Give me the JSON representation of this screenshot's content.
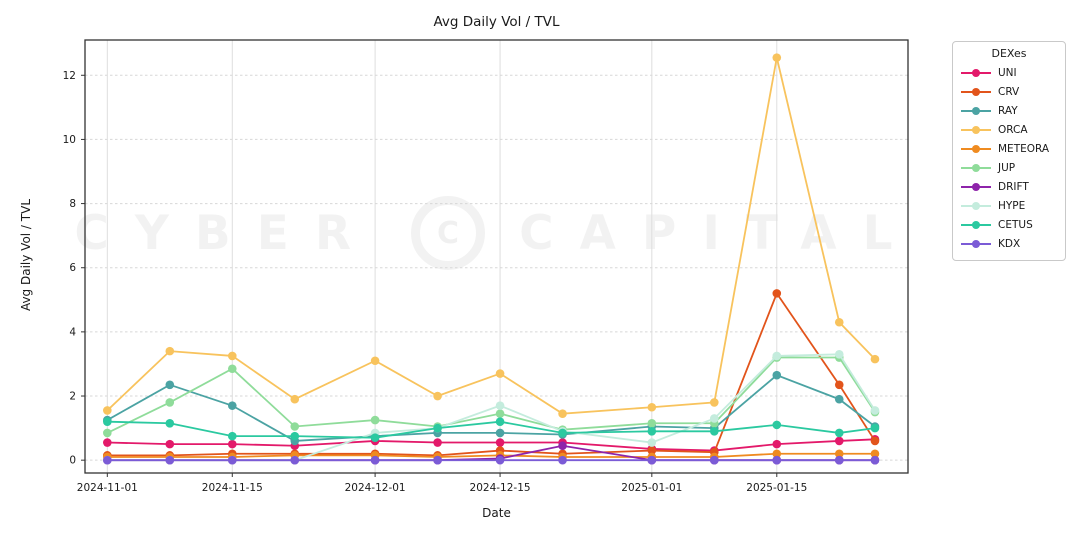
{
  "title": "Avg Daily Vol / TVL",
  "xlabel": "Date",
  "ylabel": "Avg Daily Vol / TVL",
  "watermark": {
    "left": "CYBER",
    "logo": "C",
    "right": "CAPITAL"
  },
  "legend": {
    "title": "DEXes"
  },
  "chart_data": {
    "type": "line",
    "title": "Avg Daily Vol / TVL",
    "xlabel": "Date",
    "ylabel": "Avg Daily Vol / TVL",
    "grid": true,
    "legend_position": "outside-right",
    "legend_title": "DEXes",
    "y_ticks": [
      0,
      2,
      4,
      6,
      8,
      10,
      12
    ],
    "ylim": [
      -0.4,
      13.1
    ],
    "xlim_days": [
      -2.5,
      89.7
    ],
    "x_tick_labels": [
      "2024-11-01",
      "2024-11-15",
      "2024-12-01",
      "2024-12-15",
      "2025-01-01",
      "2025-01-15"
    ],
    "x_tick_days": [
      0,
      14,
      30,
      44,
      61,
      75
    ],
    "x_dates": [
      "2024-11-01",
      "2024-11-08",
      "2024-11-15",
      "2024-11-22",
      "2024-12-01",
      "2024-12-08",
      "2024-12-15",
      "2024-12-22",
      "2025-01-01",
      "2025-01-08",
      "2025-01-15",
      "2025-01-22",
      "2025-01-26"
    ],
    "x_days": [
      0,
      7,
      14,
      21,
      30,
      37,
      44,
      51,
      61,
      68,
      75,
      82,
      86
    ],
    "series": [
      {
        "name": "UNI",
        "color": "#e3196a",
        "values": [
          0.55,
          0.5,
          0.5,
          0.45,
          0.6,
          0.55,
          0.55,
          0.55,
          0.35,
          0.3,
          0.5,
          0.6,
          0.65
        ]
      },
      {
        "name": "CRV",
        "color": "#e2541b",
        "values": [
          0.15,
          0.15,
          0.2,
          0.2,
          0.2,
          0.15,
          0.3,
          0.2,
          0.3,
          0.25,
          5.2,
          2.35,
          0.6
        ]
      },
      {
        "name": "RAY",
        "color": "#4ba3a3",
        "values": [
          1.25,
          2.35,
          1.7,
          0.6,
          0.75,
          0.85,
          0.85,
          0.8,
          1.05,
          1.0,
          2.65,
          1.9,
          1.05
        ]
      },
      {
        "name": "ORCA",
        "color": "#f8c35d",
        "values": [
          1.55,
          3.4,
          3.25,
          1.9,
          3.1,
          2.0,
          2.7,
          1.45,
          1.65,
          1.8,
          12.55,
          4.3,
          3.15
        ]
      },
      {
        "name": "METEORA",
        "color": "#ef8b20",
        "values": [
          0.1,
          0.1,
          0.1,
          0.15,
          0.15,
          0.1,
          0.15,
          0.1,
          0.1,
          0.1,
          0.2,
          0.2,
          0.2
        ]
      },
      {
        "name": "JUP",
        "color": "#8fdc9a",
        "values": [
          0.85,
          1.8,
          2.85,
          1.05,
          1.25,
          1.05,
          1.45,
          0.95,
          1.15,
          1.15,
          3.2,
          3.2,
          1.5
        ]
      },
      {
        "name": "DRIFT",
        "color": "#8e24aa",
        "values": [
          0.0,
          0.0,
          0.0,
          0.0,
          0.0,
          0.0,
          0.05,
          0.45,
          0.0,
          0.0,
          0.0,
          0.0,
          0.0
        ]
      },
      {
        "name": "HYPE",
        "color": "#c4ecdd",
        "values": [
          0.0,
          0.0,
          0.0,
          0.0,
          0.85,
          1.0,
          1.7,
          0.9,
          0.55,
          1.3,
          3.25,
          3.3,
          1.55
        ]
      },
      {
        "name": "CETUS",
        "color": "#2bc9a0",
        "values": [
          1.2,
          1.15,
          0.75,
          0.75,
          0.7,
          1.0,
          1.2,
          0.85,
          0.9,
          0.9,
          1.1,
          0.85,
          1.0
        ]
      },
      {
        "name": "KDX",
        "color": "#7b5bd6",
        "values": [
          0.0,
          0.0,
          0.0,
          0.0,
          0.0,
          0.0,
          0.0,
          0.0,
          0.0,
          0.0,
          0.0,
          0.0,
          0.0
        ]
      }
    ]
  }
}
